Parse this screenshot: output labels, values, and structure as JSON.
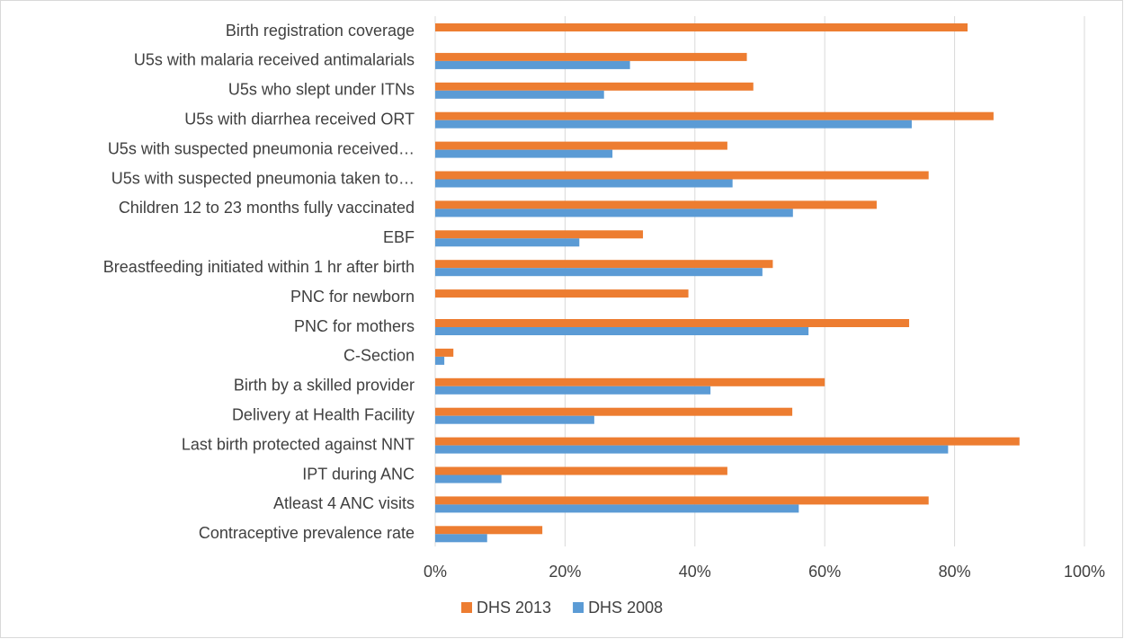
{
  "chart_data": {
    "type": "bar",
    "orientation": "horizontal",
    "categories": [
      "Birth registration coverage",
      "U5s with malaria received antimalarials",
      "U5s who slept under ITNs",
      "U5s with diarrhea received ORT",
      "U5s with suspected pneumonia received…",
      "U5s with suspected pneumonia taken to…",
      "Children 12 to 23 months fully vaccinated",
      "EBF",
      "Breastfeeding  initiated within 1 hr after birth",
      "PNC for newborn",
      "PNC for mothers",
      "C-Section",
      "Birth by a skilled provider",
      "Delivery at Health Facility",
      "Last birth protected against NNT",
      "IPT during ANC",
      "Atleast 4 ANC visits",
      "Contraceptive prevalence rate"
    ],
    "series": [
      {
        "name": "DHS 2013",
        "color": "#ed7d31",
        "values": [
          82,
          48,
          49,
          86,
          45,
          76,
          68,
          32,
          52,
          39,
          73,
          2.8,
          60,
          55,
          90,
          45,
          76,
          16.5
        ]
      },
      {
        "name": "DHS 2008",
        "color": "#5b9bd5",
        "values": [
          null,
          30,
          26,
          73.4,
          27.3,
          45.8,
          55.1,
          22.2,
          50.4,
          null,
          57.5,
          1.4,
          42.4,
          24.5,
          79,
          10.2,
          56,
          8
        ]
      }
    ],
    "xlim": [
      0,
      100
    ],
    "xticks": [
      {
        "value": 0,
        "label": "0%"
      },
      {
        "value": 20,
        "label": "20%"
      },
      {
        "value": 40,
        "label": "40%"
      },
      {
        "value": 60,
        "label": "60%"
      },
      {
        "value": 80,
        "label": "80%"
      },
      {
        "value": 100,
        "label": "100%"
      }
    ],
    "grid": true,
    "legend": "bottom"
  }
}
